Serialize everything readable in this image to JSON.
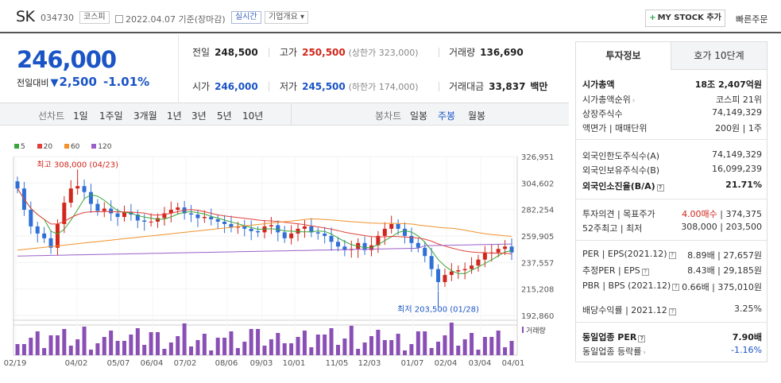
{
  "header": {
    "name": "SK",
    "code": "034730",
    "market": "코스피",
    "date": "2022.04.07 기준(장마감)",
    "realtime": "실시간",
    "company_overview": "기업개요",
    "mystock_label": "MY STOCK 추가",
    "quick_order": "빠른주문"
  },
  "quote": {
    "price": "246,000",
    "change_label": "전일대비",
    "change_value": "2,500",
    "change_pct": "-1.01%",
    "prev_label": "전일",
    "prev": "248,500",
    "high_label": "고가",
    "high": "250,500",
    "upper_limit": "(상한가 323,000)",
    "volume_label": "거래량",
    "volume": "136,690",
    "open_label": "시가",
    "open": "246,000",
    "low_label": "저가",
    "low": "245,500",
    "lower_limit": "(하한가 174,000)",
    "amount_label": "거래대금",
    "amount": "33,837",
    "amount_unit": "백만"
  },
  "tabs": {
    "line_label": "선차트",
    "ranges": [
      "1일",
      "1주일",
      "3개월",
      "1년",
      "3년",
      "5년",
      "10년"
    ],
    "candle_label": "봉차트",
    "periods": [
      "일봉",
      "주봉",
      "월봉"
    ],
    "active_period": "주봉"
  },
  "chart_data": {
    "type": "candlestick",
    "legend": [
      {
        "name": "5",
        "color": "#3aa63a"
      },
      {
        "name": "20",
        "color": "#e0413a"
      },
      {
        "name": "60",
        "color": "#f0922b"
      },
      {
        "name": "120",
        "color": "#9a5fc9"
      }
    ],
    "y_ticks": [
      "326,951",
      "304,602",
      "282,254",
      "259,905",
      "237,557",
      "215,208",
      "192,860"
    ],
    "x_ticks": [
      "02/19",
      "04/02",
      "05/07",
      "06/04",
      "07/02",
      "08/06",
      "09/03",
      "10/01",
      "11/05",
      "12/03",
      "01/07",
      "02/04",
      "03/04",
      "04/01"
    ],
    "high_annotation": "최고 308,000 (04/23)",
    "low_annotation": "최저 203,500 (01/28)",
    "volume_label": "거래량",
    "colors": {
      "up": "#d1261b",
      "down": "#2f6fd6"
    }
  },
  "panel": {
    "tab_info": "투자정보",
    "tab_orderbook": "호가 10단계",
    "rows": [
      {
        "l": "시가총액",
        "r": "18조 2,407억원",
        "bold": true
      },
      {
        "l": "시가총액순위",
        "r": "코스피 21위"
      },
      {
        "l": "상장주식수",
        "r": "74,149,329"
      },
      {
        "l": "액면가 | 매매단위",
        "r": "200원 | 1주"
      },
      {
        "l": "외국인한도주식수(A)",
        "r": "74,149,329"
      },
      {
        "l": "외국인보유주식수(B)",
        "r": "16,099,239"
      },
      {
        "l": "외국인소진율(B/A)",
        "r": "21.71%",
        "bold": true
      },
      {
        "l": "투자의견 | 목표주가",
        "r1": "4.00매수",
        "r2": "374,375"
      },
      {
        "l": "52주최고 | 최저",
        "r": "308,000 | 203,500"
      },
      {
        "l": "PER | EPS(2021.12)",
        "r": "8.89배 | 27,657원"
      },
      {
        "l": "추정PER | EPS",
        "r": "8.43배 | 29,185원"
      },
      {
        "l": "PBR | BPS (2021.12)",
        "r": "0.66배 | 375,010원"
      },
      {
        "l": "배당수익률 | 2021.12",
        "r": "3.25%"
      },
      {
        "l": "동일업종 PER",
        "r": "7.90배",
        "bold": true
      },
      {
        "l": "동일업종 등락률",
        "r": "-1.16%"
      }
    ]
  }
}
